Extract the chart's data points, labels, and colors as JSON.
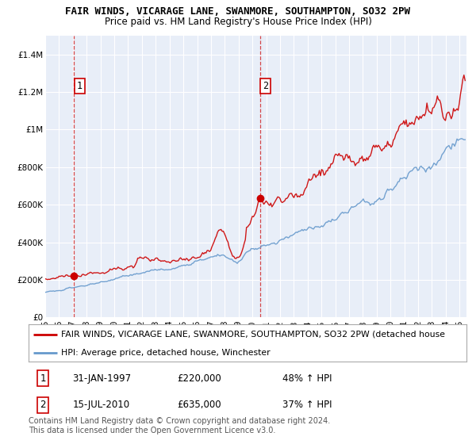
{
  "title": "FAIR WINDS, VICARAGE LANE, SWANMORE, SOUTHAMPTON, SO32 2PW",
  "subtitle": "Price paid vs. HM Land Registry's House Price Index (HPI)",
  "ylim": [
    0,
    1500000
  ],
  "xlim_start": 1995.0,
  "xlim_end": 2025.5,
  "yticks": [
    0,
    200000,
    400000,
    600000,
    800000,
    1000000,
    1200000,
    1400000
  ],
  "ytick_labels": [
    "£0",
    "£200K",
    "£400K",
    "£600K",
    "£800K",
    "£1M",
    "£1.2M",
    "£1.4M"
  ],
  "sale1_date_num": 1997.08,
  "sale1_price": 220000,
  "sale2_date_num": 2010.54,
  "sale2_price": 635000,
  "property_line_color": "#cc0000",
  "hpi_line_color": "#6699cc",
  "dashed_line_color": "#cc0000",
  "plot_bg_color": "#e8eef8",
  "grid_color": "#ffffff",
  "legend_label_property": "FAIR WINDS, VICARAGE LANE, SWANMORE, SOUTHAMPTON, SO32 2PW (detached house",
  "legend_label_hpi": "HPI: Average price, detached house, Winchester",
  "table_row1": [
    "1",
    "31-JAN-1997",
    "£220,000",
    "48% ↑ HPI"
  ],
  "table_row2": [
    "2",
    "15-JUL-2010",
    "£635,000",
    "37% ↑ HPI"
  ],
  "footer": "Contains HM Land Registry data © Crown copyright and database right 2024.\nThis data is licensed under the Open Government Licence v3.0.",
  "title_fontsize": 9.0,
  "subtitle_fontsize": 8.5,
  "tick_fontsize": 7.5,
  "label_fontsize": 8.5,
  "footer_fontsize": 7.0
}
